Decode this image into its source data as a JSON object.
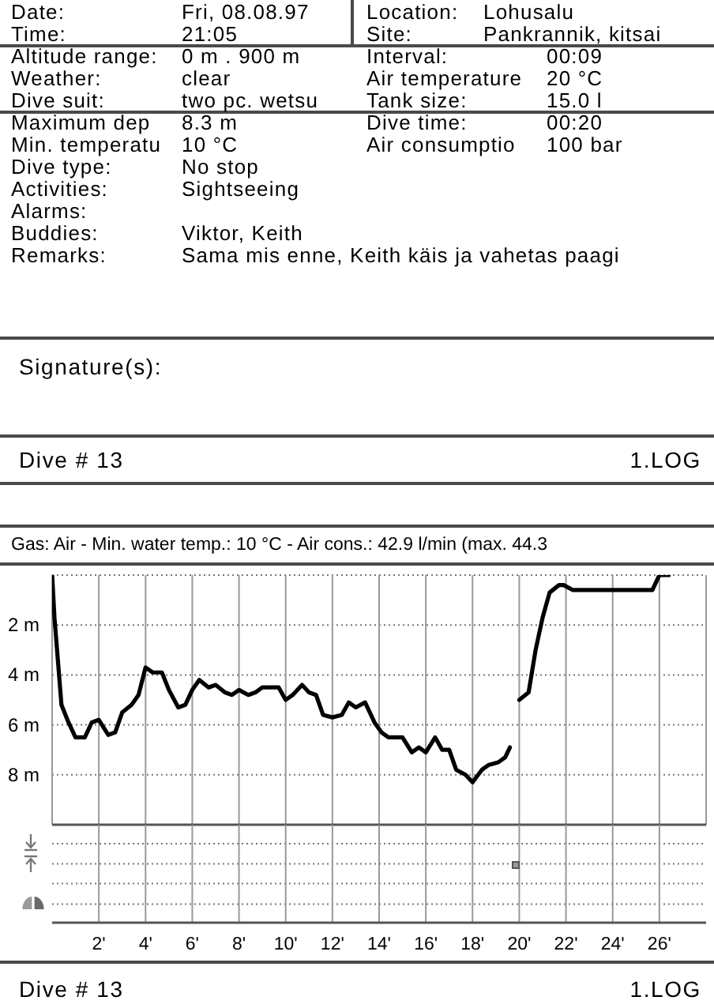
{
  "chart_data": {
    "type": "line",
    "title": "Gas: Air  -  Min. water temp.: 10 °C  -  Air cons.: 42.9 l/min (max. 44.3",
    "annotations": [
      "Date:",
      "Fri, 08.08.97",
      "Location:",
      "Lohusalu",
      "Time:",
      "21:05",
      "Site:",
      "Pankrannik, kitsai",
      "Altitude range:",
      "0 m . 900 m",
      "Interval:",
      "00:09",
      "Weather:",
      "clear",
      "Air temperature",
      "20 °C",
      "Dive suit:",
      "two pc. wetsu",
      "Tank size:",
      "15.0 l",
      "Maximum dep",
      "8.3 m",
      "Dive time:",
      "00:20",
      "Min. temperatu",
      "10 °C",
      "Air consumptio",
      "100 bar",
      "Dive type:",
      "No stop",
      "Activities:",
      "Sightseeing",
      "Alarms:",
      "Buddies:",
      "Viktor, Keith",
      "Remarks:",
      "Sama mis enne, Keith käis ja vahetas paagi",
      "Signature(s):",
      "Dive # 13",
      "1.LOG",
      "Dive # 13",
      "1.LOG"
    ],
    "x": [
      0,
      0.1,
      0.4,
      0.7,
      1.0,
      1.4,
      1.7,
      2.0,
      2.4,
      2.7,
      3.0,
      3.4,
      3.7,
      4.0,
      4.3,
      4.7,
      5.0,
      5.4,
      5.7,
      6.0,
      6.3,
      6.7,
      7.0,
      7.4,
      7.7,
      8.0,
      8.4,
      8.7,
      9.0,
      9.7,
      10.0,
      10.3,
      10.7,
      11.0,
      11.3,
      11.6,
      12.0,
      12.4,
      12.7,
      13.0,
      13.4,
      13.8,
      14.1,
      14.4,
      15.0,
      15.4,
      15.7,
      16.0,
      16.4,
      16.7,
      17.0,
      17.3,
      17.7,
      18.0,
      18.4,
      18.7,
      19.1,
      19.4,
      19.6,
      19.8,
      20.0,
      20.4,
      20.7,
      21.0,
      21.3,
      21.7,
      21.9,
      22.3,
      25.7,
      26.0,
      26.4
    ],
    "values": [
      0,
      1.7,
      5.2,
      5.9,
      6.5,
      6.5,
      5.9,
      5.8,
      6.4,
      6.3,
      5.5,
      5.2,
      4.8,
      3.7,
      3.9,
      3.9,
      4.6,
      5.3,
      5.2,
      4.6,
      4.2,
      4.5,
      4.4,
      4.7,
      4.8,
      4.6,
      4.8,
      4.7,
      4.5,
      4.5,
      5.0,
      4.8,
      4.4,
      4.7,
      4.8,
      5.6,
      5.7,
      5.6,
      5.1,
      5.3,
      5.1,
      5.9,
      6.3,
      6.5,
      6.5,
      7.1,
      6.9,
      7.1,
      6.5,
      7.0,
      7.0,
      7.8,
      8.0,
      8.3,
      7.8,
      7.6,
      7.5,
      7.3,
      6.9,
      null,
      5.0,
      4.7,
      3.0,
      1.7,
      0.7,
      0.4,
      0.4,
      0.6,
      0.6,
      0,
      0
    ],
    "color": "#000000",
    "marker": "none",
    "xlim": [
      0,
      28
    ],
    "xticks": [
      {
        "value": 2,
        "label": "2'"
      },
      {
        "value": 4,
        "label": "4'"
      },
      {
        "value": 6,
        "label": "6'"
      },
      {
        "value": 8,
        "label": "8'"
      },
      {
        "value": 10,
        "label": "10'"
      },
      {
        "value": 12,
        "label": "12'"
      },
      {
        "value": 14,
        "label": "14'"
      },
      {
        "value": 16,
        "label": "16'"
      },
      {
        "value": 18,
        "label": "18'"
      },
      {
        "value": 20,
        "label": "20'"
      },
      {
        "value": 22,
        "label": "22'"
      },
      {
        "value": 24,
        "label": "24'"
      },
      {
        "value": 26,
        "label": "26'"
      }
    ],
    "ylim": [
      10,
      0
    ],
    "yticks": [
      {
        "value": 0,
        "label": null
      },
      {
        "value": 2,
        "label": "2 m"
      },
      {
        "value": 4,
        "label": "4 m"
      },
      {
        "value": 6,
        "label": "6 m"
      },
      {
        "value": 8,
        "label": "8 m"
      },
      {
        "value": 10,
        "label": null
      }
    ],
    "grid": true
  }
}
